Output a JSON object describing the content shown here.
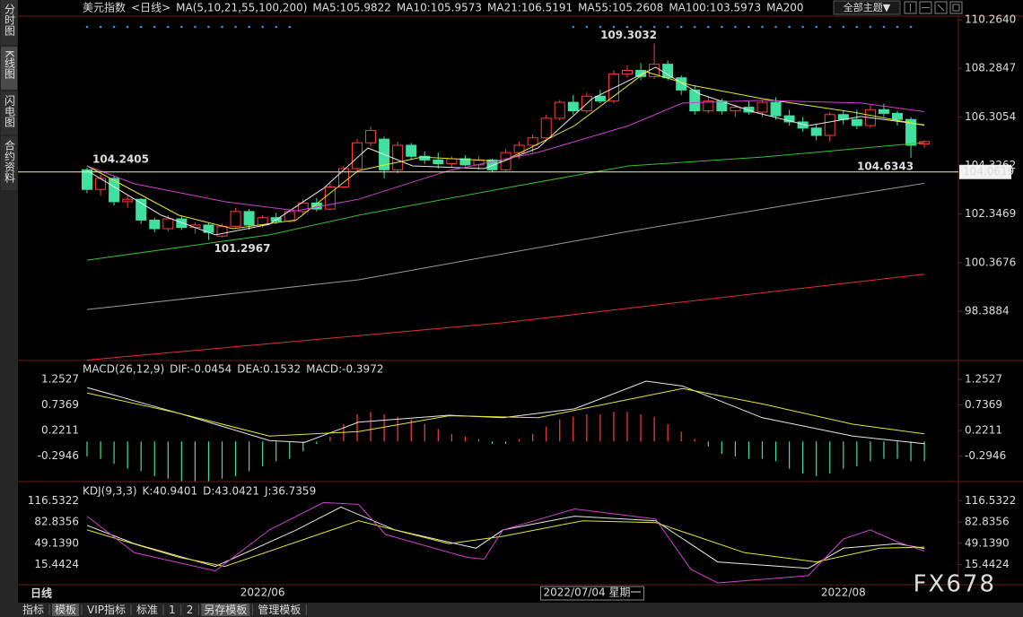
{
  "ui": {
    "sidebar": [
      "分时图",
      "K线图",
      "闪电图",
      "合约资料"
    ],
    "symbol": "美元指数",
    "period": "<日线>",
    "theme_button": "全部主题▼",
    "period_label": "日线",
    "crosshair_label": "2022/07/04 星期一",
    "watermark": "FX678",
    "toolbar": [
      "指标",
      "模板",
      "VIP指标",
      "标准",
      "1",
      "2",
      "另存模板",
      "管理模板"
    ]
  },
  "chart_data": [
    {
      "type": "candlestick",
      "title": "MA(5,10,21,55,100,200)",
      "categories": [
        null,
        null,
        null,
        null,
        null,
        null,
        null,
        null,
        null,
        null,
        null,
        null,
        null,
        "2022/06",
        null,
        null,
        null,
        null,
        null,
        null,
        null,
        null,
        null,
        null,
        null,
        null,
        null,
        null,
        null,
        null,
        null,
        null,
        null,
        null,
        null,
        null,
        null,
        null,
        null,
        null,
        null,
        null,
        null,
        null,
        null,
        null,
        null,
        null,
        null,
        null,
        null,
        null,
        null,
        null,
        null,
        null,
        "2022/08",
        null,
        null,
        null,
        null,
        null,
        null
      ],
      "open": [
        104.15,
        103.35,
        103.8,
        102.85,
        102.95,
        102.1,
        101.75,
        102.15,
        101.8,
        101.9,
        101.45,
        101.85,
        102.45,
        101.9,
        102.2,
        102.05,
        102.45,
        102.8,
        102.55,
        103.45,
        104.2,
        105.25,
        105.4,
        104.15,
        105.15,
        104.7,
        104.55,
        104.4,
        104.6,
        104.35,
        104.55,
        104.15,
        104.85,
        105.15,
        105.45,
        106.25,
        106.9,
        106.55,
        107.15,
        106.95,
        108.05,
        108.2,
        107.95,
        108.45,
        107.9,
        107.4,
        106.55,
        106.95,
        106.55,
        106.7,
        106.5,
        106.9,
        106.35,
        106.1,
        105.85,
        105.55,
        106.4,
        106.2,
        105.95,
        106.6,
        106.45,
        106.2,
        105.2
      ],
      "high": [
        104.2405,
        103.95,
        103.9,
        103.1,
        103.0,
        102.2,
        102.3,
        102.25,
        102.0,
        102.0,
        101.95,
        102.6,
        102.55,
        102.3,
        102.4,
        102.55,
        102.95,
        103.0,
        103.6,
        104.3,
        105.4,
        105.9,
        105.5,
        105.3,
        105.25,
        104.9,
        104.85,
        104.7,
        104.75,
        104.7,
        104.6,
        105.0,
        105.3,
        105.6,
        106.4,
        107.0,
        107.2,
        107.3,
        107.4,
        108.2,
        108.4,
        108.5,
        109.3032,
        108.6,
        108.0,
        107.6,
        107.1,
        107.05,
        106.8,
        106.95,
        107.0,
        107.1,
        106.6,
        106.3,
        106.0,
        106.5,
        106.55,
        106.6,
        106.8,
        106.85,
        106.55,
        106.3,
        105.35
      ],
      "low": [
        103.2,
        103.1,
        102.7,
        102.6,
        101.95,
        101.6,
        101.65,
        101.7,
        101.55,
        101.2967,
        101.4,
        101.8,
        101.7,
        101.8,
        101.95,
        102.0,
        102.3,
        102.45,
        102.5,
        103.4,
        104.1,
        105.1,
        103.8,
        104.0,
        104.55,
        104.4,
        104.2,
        104.25,
        104.3,
        104.15,
        104.05,
        104.1,
        104.6,
        104.85,
        105.4,
        106.15,
        106.4,
        106.45,
        106.85,
        106.85,
        107.9,
        107.8,
        107.85,
        107.8,
        107.2,
        106.4,
        106.45,
        106.4,
        106.3,
        106.4,
        106.3,
        106.2,
        105.95,
        105.7,
        105.35,
        105.3,
        106.0,
        105.8,
        105.85,
        106.3,
        105.95,
        104.6343,
        105.05
      ],
      "close": [
        103.35,
        103.8,
        102.85,
        102.95,
        102.1,
        101.75,
        102.15,
        101.8,
        101.9,
        101.6,
        101.85,
        102.45,
        101.9,
        102.2,
        102.05,
        102.45,
        102.8,
        102.55,
        103.45,
        104.2,
        105.25,
        105.75,
        104.15,
        105.15,
        104.7,
        104.55,
        104.4,
        104.6,
        104.35,
        104.55,
        104.15,
        104.85,
        105.15,
        105.45,
        106.25,
        106.9,
        106.55,
        107.15,
        106.95,
        108.05,
        108.2,
        107.95,
        108.45,
        107.9,
        107.4,
        106.55,
        106.95,
        106.55,
        106.7,
        106.5,
        106.9,
        106.35,
        106.1,
        105.85,
        105.55,
        106.4,
        106.2,
        105.95,
        106.6,
        106.45,
        106.2,
        105.15,
        105.3
      ],
      "up_color": "#ff3c3c",
      "down_color": "#3fe0a0",
      "series": [
        {
          "name": "MA5:105.9822",
          "color": "#e8e8e8",
          "x": [
            0,
            5.5,
            9.5,
            13.5,
            17.5,
            20.8,
            24.1,
            29.4,
            33.4,
            37.4,
            42.1,
            45.4,
            49.4,
            53.4,
            57.3,
            62
          ],
          "values": [
            104.12,
            102.3,
            101.5,
            101.93,
            103.39,
            105.04,
            104.31,
            104.2,
            105.04,
            107.05,
            108.33,
            107.23,
            106.5,
            105.95,
            106.32,
            105.98
          ]
        },
        {
          "name": "MA10:105.9573",
          "color": "#e6e62e",
          "x": [
            0,
            6.8,
            10.8,
            15.5,
            20.1,
            24.8,
            30.8,
            36.1,
            41.4,
            44.7,
            50,
            56.7,
            62
          ],
          "values": [
            104.31,
            102.3,
            101.75,
            102.11,
            104.12,
            104.67,
            104.49,
            105.95,
            108.14,
            107.6,
            107.05,
            106.5,
            105.96
          ]
        },
        {
          "name": "MA21:106.5191",
          "color": "#d040d0",
          "x": [
            0,
            3.5,
            10.2,
            15.5,
            20.1,
            26.8,
            33.4,
            40.1,
            44.1,
            50,
            57.3,
            62
          ],
          "values": [
            104.31,
            103.58,
            102.85,
            102.48,
            102.95,
            104.12,
            104.86,
            105.95,
            106.87,
            106.98,
            106.87,
            106.52
          ]
        },
        {
          "name": "MA55:105.2608",
          "color": "#33c033",
          "x": [
            0,
            13.5,
            20.1,
            30.8,
            40.1,
            50,
            62
          ],
          "values": [
            100.47,
            101.5,
            102.3,
            103.39,
            104.31,
            104.67,
            105.26
          ]
        },
        {
          "name": "MA100:103.5973",
          "color": "#9a9a9a",
          "x": [
            0,
            20.1,
            40.1,
            53.4,
            62
          ],
          "values": [
            98.46,
            99.67,
            101.64,
            102.85,
            103.6
          ]
        },
        {
          "name": "MA200",
          "color": "#e03030",
          "x": [
            0,
            30.8,
            62
          ],
          "values": [
            96.4,
            97.92,
            99.9
          ]
        }
      ],
      "ylim": [
        96.38,
        110.41
      ],
      "yticks": [
        {
          "value": 110.264,
          "label": "110.2640"
        },
        108.2847,
        106.3054,
        104.3262,
        102.3469,
        100.3676,
        98.3884
      ],
      "annotations": [
        {
          "x": 0,
          "value": 104.2405
        },
        {
          "x": 9,
          "value": 101.2967
        },
        {
          "x": 42,
          "value": 109.3032
        },
        {
          "x": 61,
          "value": 104.6343
        }
      ],
      "hline": 104.0619,
      "hline_color": "#fff2b0"
    },
    {
      "type": "macd",
      "title": "MACD(26,12,9)",
      "histogram": {
        "name": "MACD:-0.3972",
        "color": "#d040d0",
        "up_color": "#ff3c3c",
        "down_color": "#3fe0a0",
        "values": [
          -0.3,
          -0.35,
          -0.45,
          -0.55,
          -0.6,
          -0.7,
          -0.75,
          -0.8,
          -0.8,
          -0.8,
          -0.75,
          -0.7,
          -0.6,
          -0.5,
          -0.4,
          -0.35,
          -0.2,
          -0.05,
          0.1,
          0.35,
          0.55,
          0.6,
          0.55,
          0.5,
          0.45,
          0.35,
          0.25,
          0.15,
          0.1,
          0.05,
          -0.05,
          -0.05,
          0.05,
          0.15,
          0.3,
          0.45,
          0.5,
          0.55,
          0.55,
          0.6,
          0.6,
          0.55,
          0.5,
          0.35,
          0.2,
          0.05,
          -0.1,
          -0.25,
          -0.3,
          -0.35,
          -0.35,
          -0.4,
          -0.55,
          -0.65,
          -0.7,
          -0.65,
          -0.55,
          -0.5,
          -0.4,
          -0.35,
          -0.35,
          -0.4,
          -0.3972
        ]
      },
      "series": [
        {
          "name": "DIF:-0.0454",
          "color": "#e8e8e8",
          "x": [
            0,
            6.8,
            13.5,
            16.1,
            20.1,
            26.8,
            30.8,
            36.1,
            41.4,
            44.1,
            50,
            56.7,
            62
          ],
          "values": [
            1.09,
            0.57,
            0.02,
            -0.02,
            0.39,
            0.53,
            0.48,
            0.66,
            1.22,
            1.12,
            0.48,
            0.11,
            -0.0454
          ]
        },
        {
          "name": "DEA:0.1532",
          "color": "#e6e62e",
          "x": [
            0,
            6.8,
            13.5,
            20.1,
            26.8,
            33.4,
            40.1,
            44.1,
            50,
            56.7,
            62
          ],
          "values": [
            0.98,
            0.57,
            0.11,
            0.2,
            0.52,
            0.48,
            0.85,
            1.07,
            0.76,
            0.35,
            0.1532
          ]
        }
      ],
      "ylim": [
        -0.81,
        1.6
      ],
      "yticks": [
        1.2527,
        0.7369,
        0.2211,
        -0.2946
      ]
    },
    {
      "type": "line",
      "title": "KDJ(9,3,3)",
      "series": [
        {
          "name": "K:40.9401",
          "color": "#e8e8e8",
          "x": [
            0,
            3.5,
            9.5,
            15.5,
            18.8,
            22.8,
            28.8,
            30.8,
            36.1,
            42.1,
            46.7,
            53.4,
            56,
            60,
            62
          ],
          "values": [
            77.5,
            48.6,
            12.5,
            70.3,
            106.4,
            70.3,
            41.4,
            70.3,
            92,
            84.7,
            19.7,
            9.6,
            41.4,
            48.6,
            40.9401
          ]
        },
        {
          "name": "D:43.0421",
          "color": "#e6e62e",
          "x": [
            0,
            6.8,
            10.2,
            20.1,
            26.8,
            30.8,
            36.7,
            42.1,
            48.7,
            54,
            58.7,
            62
          ],
          "values": [
            70.3,
            27,
            12.5,
            84.7,
            48.6,
            60.2,
            84.7,
            81.9,
            34.2,
            19.7,
            41.4,
            43.0421
          ]
        },
        {
          "name": "J:36.7359",
          "color": "#d040d0",
          "x": [
            0,
            3.5,
            9.5,
            13.5,
            17.5,
            20.1,
            22.1,
            28.1,
            29.4,
            30.8,
            36.1,
            42.1,
            44.7,
            46.7,
            53.4,
            56,
            58,
            60,
            62
          ],
          "values": [
            92,
            34.2,
            5.4,
            70.3,
            113.6,
            110.7,
            63,
            27,
            24,
            70.3,
            103.5,
            87.6,
            8.2,
            -13.5,
            -2,
            55.8,
            70.3,
            51.5,
            36.7359
          ]
        }
      ],
      "ylim": [
        -16.4,
        142.5
      ],
      "yticks": [
        116.5322,
        82.8356,
        {
          "value": 49.139,
          "label": "49.1390"
        },
        15.4424
      ]
    }
  ]
}
